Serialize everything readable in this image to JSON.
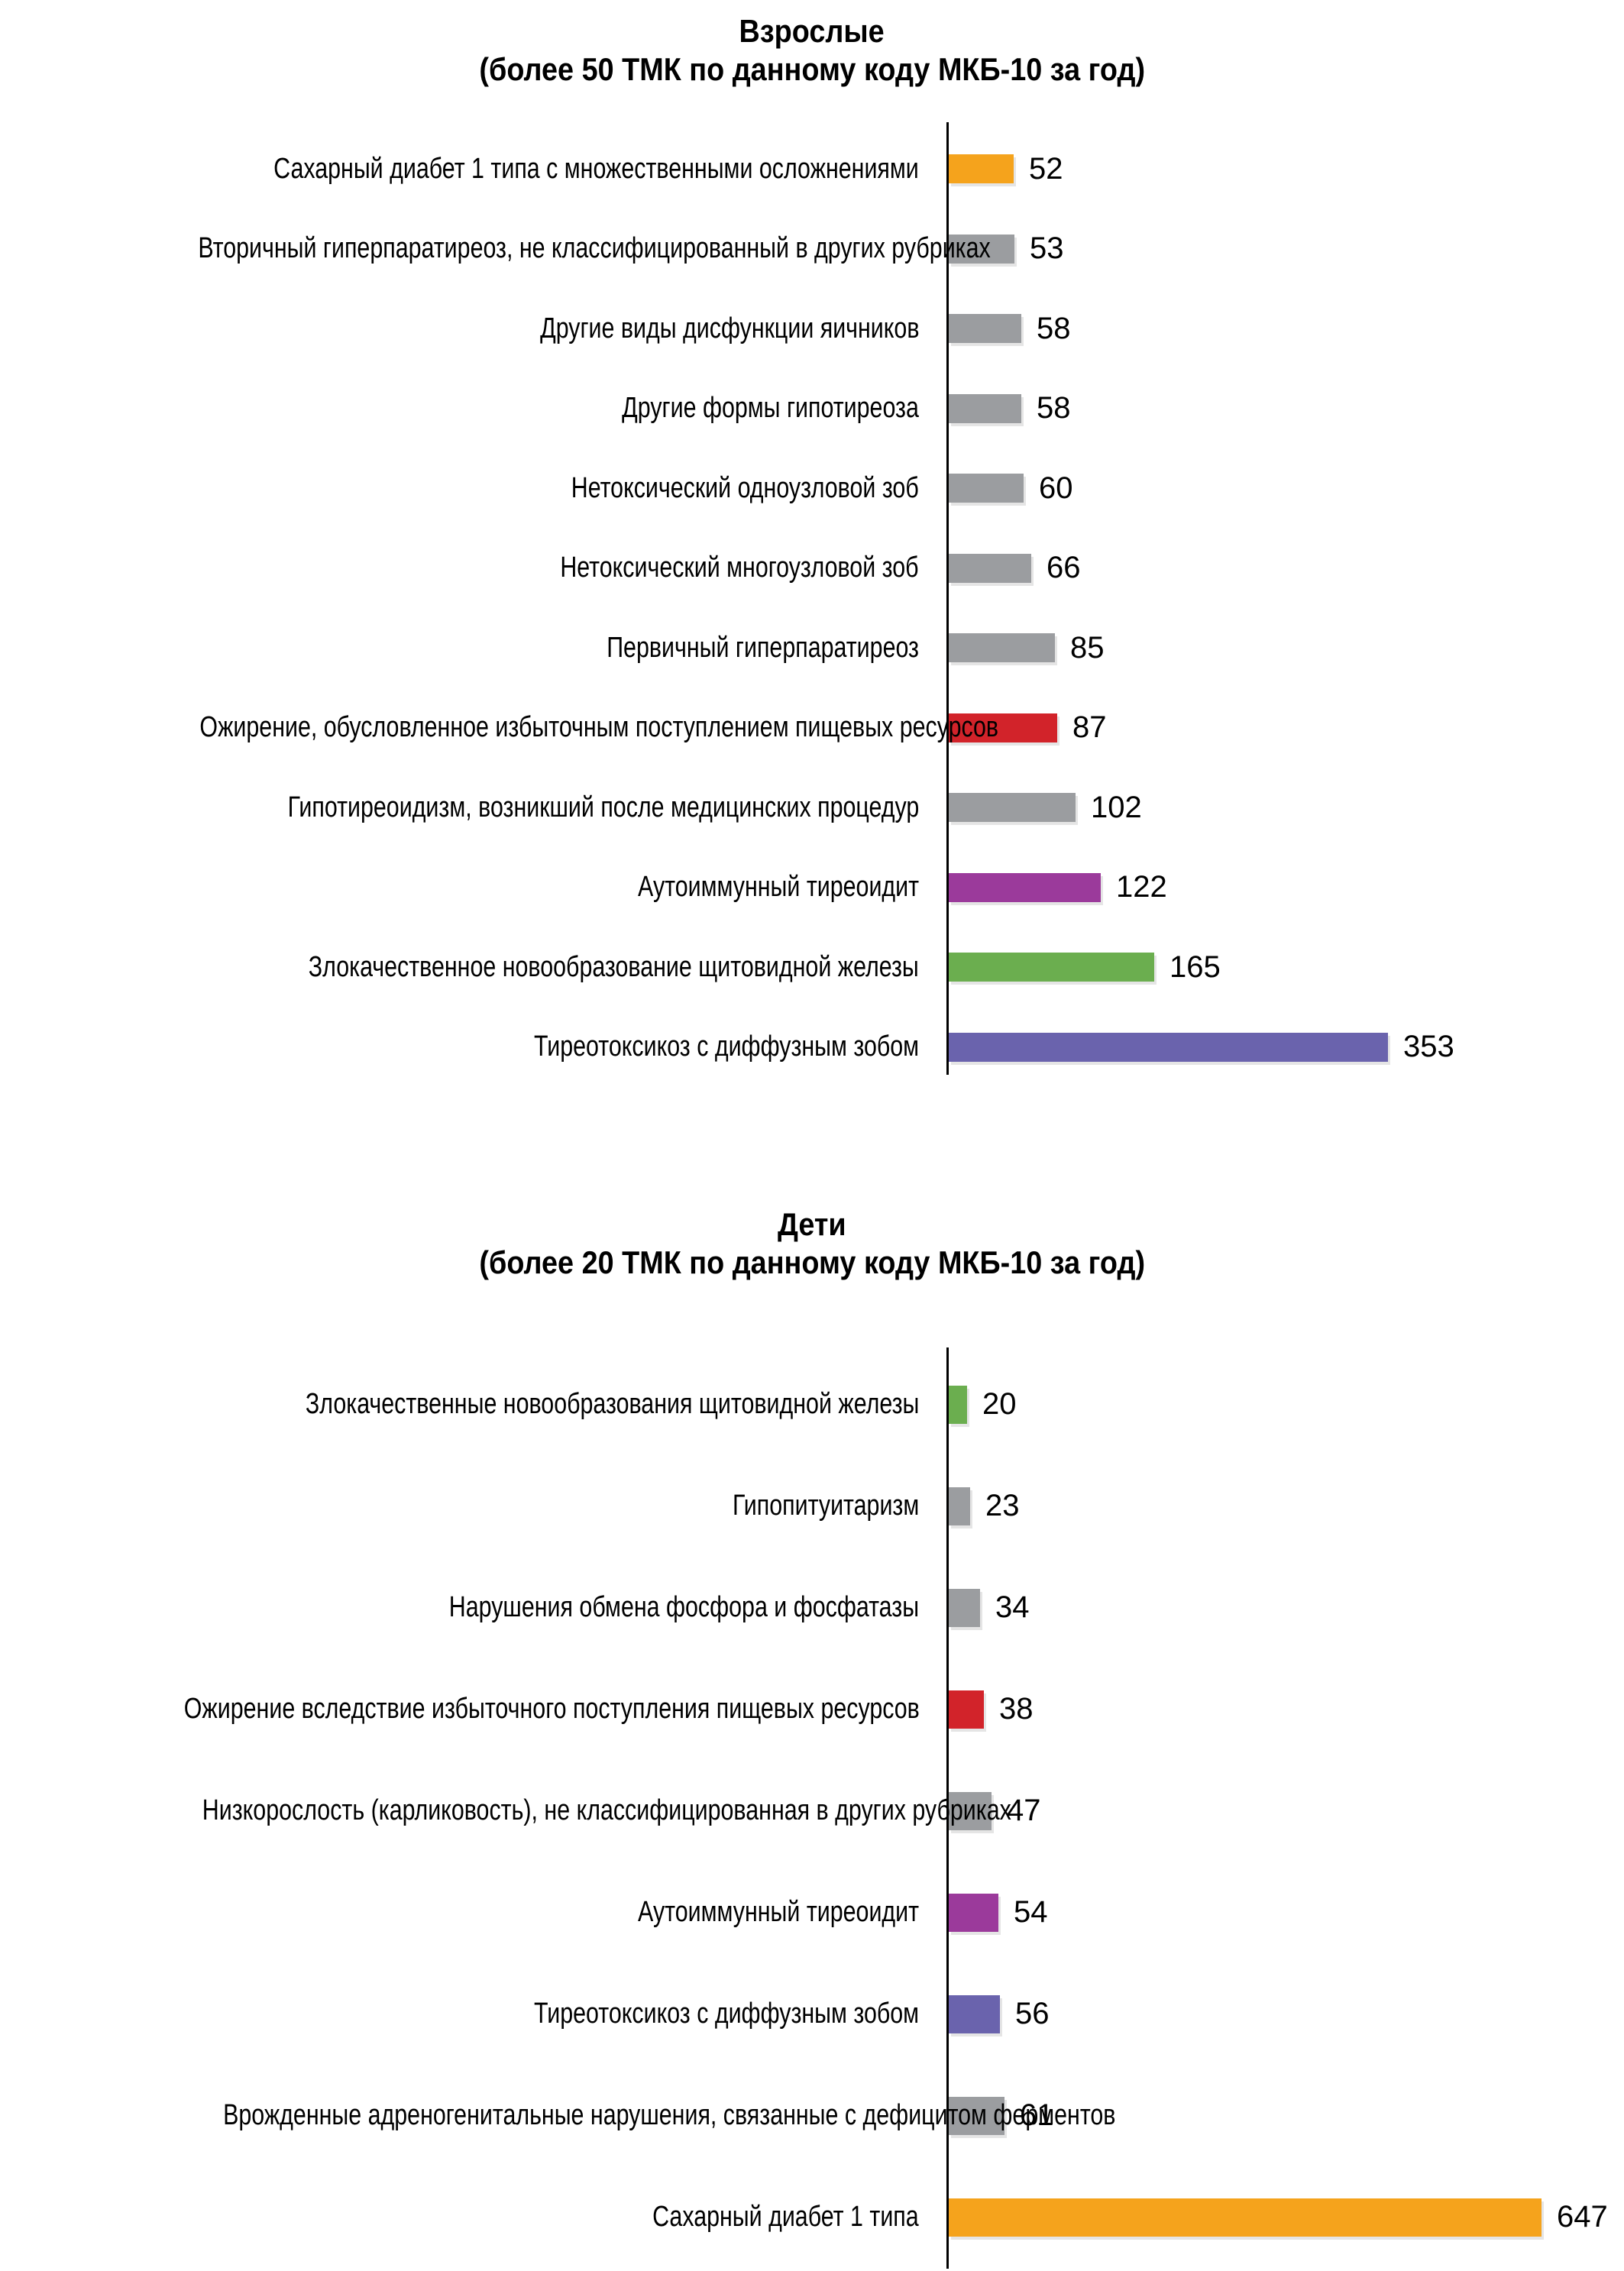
{
  "page": {
    "background": "#FFFFFF",
    "text_color": "#000000",
    "axis_color": "#000000"
  },
  "chart_data": [
    {
      "type": "bar",
      "orientation": "horizontal",
      "title": "Взрослые",
      "subtitle": "(более 50 ТМК по данному коду МКБ-10 за год)",
      "grid": false,
      "legend": false,
      "value_labels": true,
      "xlim": [
        0,
        420
      ],
      "categories": [
        "Сахарный диабет 1 типа с множественными осложнениями",
        "Вторичный гиперпаратиреоз, не классифицированный в других рубриках",
        "Другие виды дисфункции яичников",
        "Другие формы гипотиреоза",
        "Нетоксический одноузловой зоб",
        "Нетоксический многоузловой зоб",
        "Первичный гиперпаратиреоз",
        "Ожирение, обусловленное избыточным поступлением пищевых ресурсов",
        "Гипотиреоидизм,  возникший после медицинских процедур",
        "Аутоиммунный тиреоидит",
        "Злокачественное новообразование щитовидной железы",
        "Тиреотоксикоз с диффузным зобом"
      ],
      "values": [
        52,
        53,
        58,
        58,
        60,
        66,
        85,
        87,
        102,
        122,
        165,
        353
      ],
      "colors": [
        "#F5A31C",
        "#9B9DA0",
        "#9B9DA0",
        "#9B9DA0",
        "#9B9DA0",
        "#9B9DA0",
        "#9B9DA0",
        "#D2232A",
        "#9B9DA0",
        "#9B3A9B",
        "#6BAE4F",
        "#6A63AD"
      ]
    },
    {
      "type": "bar",
      "orientation": "horizontal",
      "title": "Дети",
      "subtitle": "(более 20 ТМК по данному коду МКБ-10 за год)",
      "grid": false,
      "legend": false,
      "value_labels": true,
      "xlim": [
        0,
        720
      ],
      "categories": [
        "Злокачественные новообразования щитовидной железы",
        "Гипопитуитаризм",
        "Нарушения обмена фосфора и фосфатазы",
        "Ожирение вследствие избыточного поступления пищевых ресурсов",
        "Низкорослость (карликовость), не классифицированная в других рубриках",
        "Аутоиммунный тиреоидит",
        "Тиреотоксикоз с диффузным зобом",
        "Врожденные адреногенитальные нарушения, связанные с дефицитом ферментов",
        "Сахарный диабет 1 типа"
      ],
      "values": [
        20,
        23,
        34,
        38,
        47,
        54,
        56,
        61,
        647
      ],
      "colors": [
        "#6BAE4F",
        "#9B9DA0",
        "#9B9DA0",
        "#D2232A",
        "#9B9DA0",
        "#9B3A9B",
        "#6A63AD",
        "#9B9DA0",
        "#F5A31C"
      ]
    }
  ]
}
